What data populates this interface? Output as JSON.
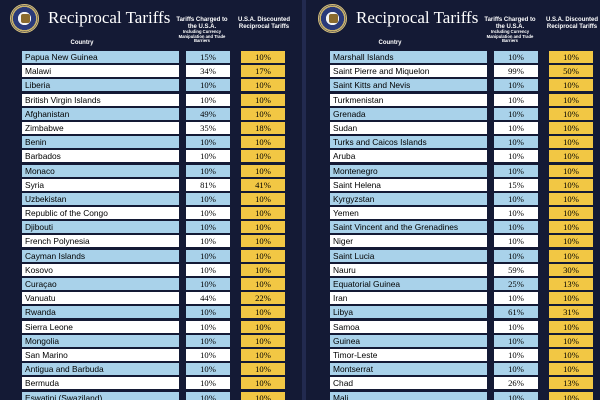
{
  "colors": {
    "background": "#141a35",
    "row_blue": "#a9d2ea",
    "row_white": "#ffffff",
    "discount_yellow": "#f2c744"
  },
  "left_panel": {
    "title": "Reciprocal Tariffs",
    "seal_icon": "presidential-seal-icon",
    "country_header": "Country",
    "charged_header": "Tariffs Charged to the U.S.A.",
    "charged_subheader": "Including Currency Manipulation and Trade Barriers",
    "discount_header": "U.S.A. Discounted Reciprocal Tariffs",
    "rows": [
      {
        "country": "Papua New Guinea",
        "charged": "15%",
        "discounted": "10%",
        "shade": "blue"
      },
      {
        "country": "Malawi",
        "charged": "34%",
        "discounted": "17%",
        "shade": "white"
      },
      {
        "country": "Liberia",
        "charged": "10%",
        "discounted": "10%",
        "shade": "blue"
      },
      {
        "country": "British Virgin Islands",
        "charged": "10%",
        "discounted": "10%",
        "shade": "white"
      },
      {
        "country": "Afghanistan",
        "charged": "49%",
        "discounted": "10%",
        "shade": "blue"
      },
      {
        "country": "Zimbabwe",
        "charged": "35%",
        "discounted": "18%",
        "shade": "white"
      },
      {
        "country": "Benin",
        "charged": "10%",
        "discounted": "10%",
        "shade": "blue"
      },
      {
        "country": "Barbados",
        "charged": "10%",
        "discounted": "10%",
        "shade": "white"
      },
      {
        "country": "Monaco",
        "charged": "10%",
        "discounted": "10%",
        "shade": "blue"
      },
      {
        "country": "Syria",
        "charged": "81%",
        "discounted": "41%",
        "shade": "white"
      },
      {
        "country": "Uzbekistan",
        "charged": "10%",
        "discounted": "10%",
        "shade": "blue"
      },
      {
        "country": "Republic of the Congo",
        "charged": "10%",
        "discounted": "10%",
        "shade": "white"
      },
      {
        "country": "Djibouti",
        "charged": "10%",
        "discounted": "10%",
        "shade": "blue"
      },
      {
        "country": "French Polynesia",
        "charged": "10%",
        "discounted": "10%",
        "shade": "white"
      },
      {
        "country": "Cayman Islands",
        "charged": "10%",
        "discounted": "10%",
        "shade": "blue"
      },
      {
        "country": "Kosovo",
        "charged": "10%",
        "discounted": "10%",
        "shade": "white"
      },
      {
        "country": "Curaçao",
        "charged": "10%",
        "discounted": "10%",
        "shade": "blue"
      },
      {
        "country": "Vanuatu",
        "charged": "44%",
        "discounted": "22%",
        "shade": "white"
      },
      {
        "country": "Rwanda",
        "charged": "10%",
        "discounted": "10%",
        "shade": "blue"
      },
      {
        "country": "Sierra Leone",
        "charged": "10%",
        "discounted": "10%",
        "shade": "white"
      },
      {
        "country": "Mongolia",
        "charged": "10%",
        "discounted": "10%",
        "shade": "blue"
      },
      {
        "country": "San Marino",
        "charged": "10%",
        "discounted": "10%",
        "shade": "white"
      },
      {
        "country": "Antigua and Barbuda",
        "charged": "10%",
        "discounted": "10%",
        "shade": "blue"
      },
      {
        "country": "Bermuda",
        "charged": "10%",
        "discounted": "10%",
        "shade": "white"
      },
      {
        "country": "Eswatini (Swaziland)",
        "charged": "10%",
        "discounted": "10%",
        "shade": "blue"
      }
    ]
  },
  "right_panel": {
    "title": "Reciprocal Tariffs",
    "seal_icon": "presidential-seal-icon",
    "country_header": "Country",
    "charged_header": "Tariffs Charged to the U.S.A.",
    "charged_subheader": "Including Currency Manipulation and Trade Barriers",
    "discount_header": "U.S.A. Discounted Reciprocal Tariffs",
    "rows": [
      {
        "country": "Marshall Islands",
        "charged": "10%",
        "discounted": "10%",
        "shade": "blue"
      },
      {
        "country": "Saint Pierre and Miquelon",
        "charged": "99%",
        "discounted": "50%",
        "shade": "white"
      },
      {
        "country": "Saint Kitts and Nevis",
        "charged": "10%",
        "discounted": "10%",
        "shade": "blue"
      },
      {
        "country": "Turkmenistan",
        "charged": "10%",
        "discounted": "10%",
        "shade": "white"
      },
      {
        "country": "Grenada",
        "charged": "10%",
        "discounted": "10%",
        "shade": "blue"
      },
      {
        "country": "Sudan",
        "charged": "10%",
        "discounted": "10%",
        "shade": "white"
      },
      {
        "country": "Turks and Caicos Islands",
        "charged": "10%",
        "discounted": "10%",
        "shade": "blue"
      },
      {
        "country": "Aruba",
        "charged": "10%",
        "discounted": "10%",
        "shade": "white"
      },
      {
        "country": "Montenegro",
        "charged": "10%",
        "discounted": "10%",
        "shade": "blue"
      },
      {
        "country": "Saint Helena",
        "charged": "15%",
        "discounted": "10%",
        "shade": "white"
      },
      {
        "country": "Kyrgyzstan",
        "charged": "10%",
        "discounted": "10%",
        "shade": "blue"
      },
      {
        "country": "Yemen",
        "charged": "10%",
        "discounted": "10%",
        "shade": "white"
      },
      {
        "country": "Saint Vincent and the Grenadines",
        "charged": "10%",
        "discounted": "10%",
        "shade": "blue"
      },
      {
        "country": "Niger",
        "charged": "10%",
        "discounted": "10%",
        "shade": "white"
      },
      {
        "country": "Saint Lucia",
        "charged": "10%",
        "discounted": "10%",
        "shade": "blue"
      },
      {
        "country": "Nauru",
        "charged": "59%",
        "discounted": "30%",
        "shade": "white"
      },
      {
        "country": "Equatorial Guinea",
        "charged": "25%",
        "discounted": "13%",
        "shade": "blue"
      },
      {
        "country": "Iran",
        "charged": "10%",
        "discounted": "10%",
        "shade": "white"
      },
      {
        "country": "Libya",
        "charged": "61%",
        "discounted": "31%",
        "shade": "blue"
      },
      {
        "country": "Samoa",
        "charged": "10%",
        "discounted": "10%",
        "shade": "white"
      },
      {
        "country": "Guinea",
        "charged": "10%",
        "discounted": "10%",
        "shade": "blue"
      },
      {
        "country": "Timor-Leste",
        "charged": "10%",
        "discounted": "10%",
        "shade": "white"
      },
      {
        "country": "Montserrat",
        "charged": "10%",
        "discounted": "10%",
        "shade": "blue"
      },
      {
        "country": "Chad",
        "charged": "26%",
        "discounted": "13%",
        "shade": "white"
      },
      {
        "country": "Mali",
        "charged": "10%",
        "discounted": "10%",
        "shade": "blue"
      }
    ]
  }
}
